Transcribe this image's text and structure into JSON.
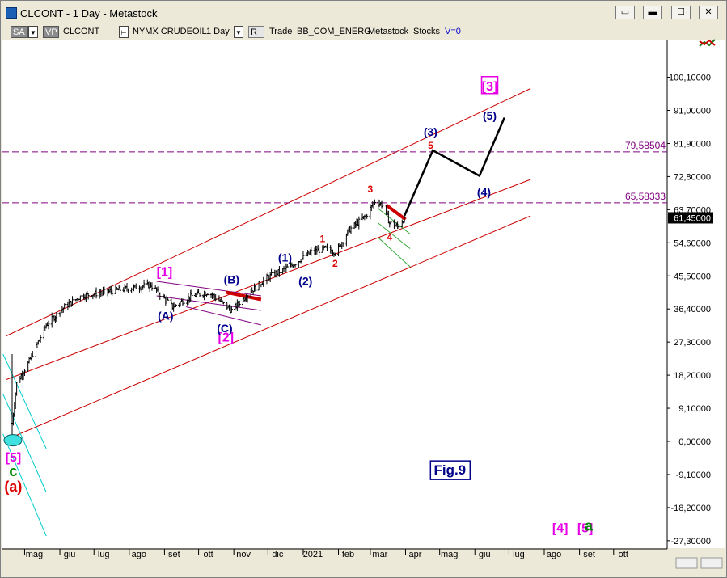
{
  "window": {
    "title": "CLCONT - 1 Day - Metastock",
    "buttons": [
      "restore",
      "minimize",
      "maximize",
      "close"
    ]
  },
  "toolbar": {
    "sa": "SA",
    "vp": "VP",
    "symbol": "CLCONT",
    "exchange": "NYMX CRUDEOIL",
    "period": "1 Day",
    "r": "R",
    "mode": "Trade",
    "feed": "BB_COM_ENERG",
    "source": "Metastock",
    "type": "Stocks",
    "volume": "V=0"
  },
  "colors": {
    "candle": "#000000",
    "channel": "#cc0000",
    "projection": "#000000",
    "hline": "#800080",
    "wave_major": "#e600e6",
    "wave_minor": "#00008b",
    "wave_sub": "#dd0000",
    "green_channel": "#33aa33",
    "cyan_channel": "#00cccc",
    "purple_channel": "#800080",
    "last_price_bg": "#000000"
  },
  "chart_data": {
    "type": "candlestick",
    "y_ticks": [
      "100,10000",
      "91,00000",
      "81,90000",
      "72,80000",
      "63,70000",
      "54,60000",
      "45,50000",
      "36,40000",
      "27,30000",
      "18,20000",
      "9,10000",
      "0,00000",
      "-9,10000",
      "-18,20000",
      "-27,30000"
    ],
    "x_ticks": [
      "mag",
      "giu",
      "lug",
      "ago",
      "set",
      "ott",
      "nov",
      "dic",
      "2021",
      "feb",
      "mar",
      "apr",
      "mag",
      "giu",
      "lug",
      "ago",
      "set",
      "ott"
    ],
    "ylim": [
      -27.3,
      109
    ],
    "last_price": "61,45000",
    "hlines": [
      {
        "label": "79,58504",
        "value": 79.585
      },
      {
        "label": "65,58333",
        "value": 65.583
      }
    ],
    "annotation_box": "Fig.9",
    "wave_labels": [
      {
        "text": "[1]",
        "group": "major"
      },
      {
        "text": "[2]",
        "group": "major"
      },
      {
        "text": "[3]",
        "group": "major"
      },
      {
        "text": "[4]",
        "group": "major"
      },
      {
        "text": "[5]",
        "group": "major"
      },
      {
        "text": "[5]",
        "group": "major"
      },
      {
        "text": "c",
        "group": "green"
      },
      {
        "text": "(a)",
        "group": "red"
      },
      {
        "text": "a",
        "group": "green"
      },
      {
        "text": "(A)",
        "group": "minor"
      },
      {
        "text": "(B)",
        "group": "minor"
      },
      {
        "text": "(C)",
        "group": "minor"
      },
      {
        "text": "(1)",
        "group": "minor"
      },
      {
        "text": "(2)",
        "group": "minor"
      },
      {
        "text": "(3)",
        "group": "minor"
      },
      {
        "text": "(4)",
        "group": "minor"
      },
      {
        "text": "(5)",
        "group": "minor"
      },
      {
        "text": "1",
        "group": "sub"
      },
      {
        "text": "2",
        "group": "sub"
      },
      {
        "text": "3",
        "group": "sub"
      },
      {
        "text": "4",
        "group": "sub"
      },
      {
        "text": "5",
        "group": "sub"
      }
    ],
    "price_path": [
      [
        "2020-04-20",
        5
      ],
      [
        "2020-04-24",
        16
      ],
      [
        "2020-05-05",
        22
      ],
      [
        "2020-05-20",
        32
      ],
      [
        "2020-06-05",
        37
      ],
      [
        "2020-06-20",
        40
      ],
      [
        "2020-07-10",
        41
      ],
      [
        "2020-07-30",
        42
      ],
      [
        "2020-08-20",
        43
      ],
      [
        "2020-09-08",
        37
      ],
      [
        "2020-09-25",
        40
      ],
      [
        "2020-10-10",
        41
      ],
      [
        "2020-10-30",
        36
      ],
      [
        "2020-11-15",
        41
      ],
      [
        "2020-11-30",
        45
      ],
      [
        "2020-12-20",
        48
      ],
      [
        "2021-01-08",
        52
      ],
      [
        "2021-01-20",
        53
      ],
      [
        "2021-01-30",
        52
      ],
      [
        "2021-02-10",
        58
      ],
      [
        "2021-02-25",
        62
      ],
      [
        "2021-03-05",
        66
      ],
      [
        "2021-03-12",
        65
      ],
      [
        "2021-03-18",
        60
      ],
      [
        "2021-03-25",
        59
      ],
      [
        "2021-03-31",
        61.45
      ]
    ],
    "projection_path": [
      [
        "2021-03-31",
        62
      ],
      [
        "2021-04-25",
        80
      ],
      [
        "2021-06-05",
        73
      ],
      [
        "2021-06-27",
        89
      ]
    ]
  }
}
